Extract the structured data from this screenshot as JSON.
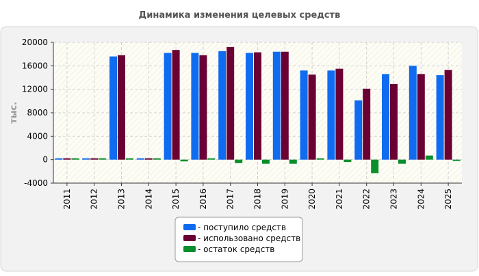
{
  "chart_data": {
    "type": "bar",
    "title": "Динамика изменения целевых средств",
    "ylabel": "тыс.",
    "xlabel": "",
    "categories": [
      "2011",
      "2012",
      "2013",
      "2014",
      "2015",
      "2016",
      "2017",
      "2018",
      "2019",
      "2020",
      "2021",
      "2022",
      "2023",
      "2024",
      "2025"
    ],
    "series": [
      {
        "name": "- поступило средств",
        "color": "#0f6cf0",
        "values": [
          200,
          200,
          17600,
          200,
          18200,
          18200,
          18500,
          18200,
          18400,
          15200,
          15200,
          10100,
          14600,
          16000,
          14400
        ]
      },
      {
        "name": "- использовано средств",
        "color": "#6b0033",
        "values": [
          200,
          200,
          17800,
          200,
          18700,
          17800,
          19200,
          18300,
          18400,
          14500,
          15500,
          12100,
          12900,
          14600,
          15300
        ]
      },
      {
        "name": "- остаток средств",
        "color": "#0b8f2c",
        "values": [
          200,
          200,
          100,
          200,
          -300,
          200,
          -600,
          -700,
          -700,
          100,
          -400,
          -2300,
          -700,
          700,
          -200
        ]
      }
    ],
    "ylim": [
      -4000,
      20000
    ],
    "yticks": [
      "-4000",
      "0",
      "4000",
      "8000",
      "12000",
      "16000",
      "20000"
    ],
    "grid": true,
    "legend_position": "bottom-center"
  }
}
